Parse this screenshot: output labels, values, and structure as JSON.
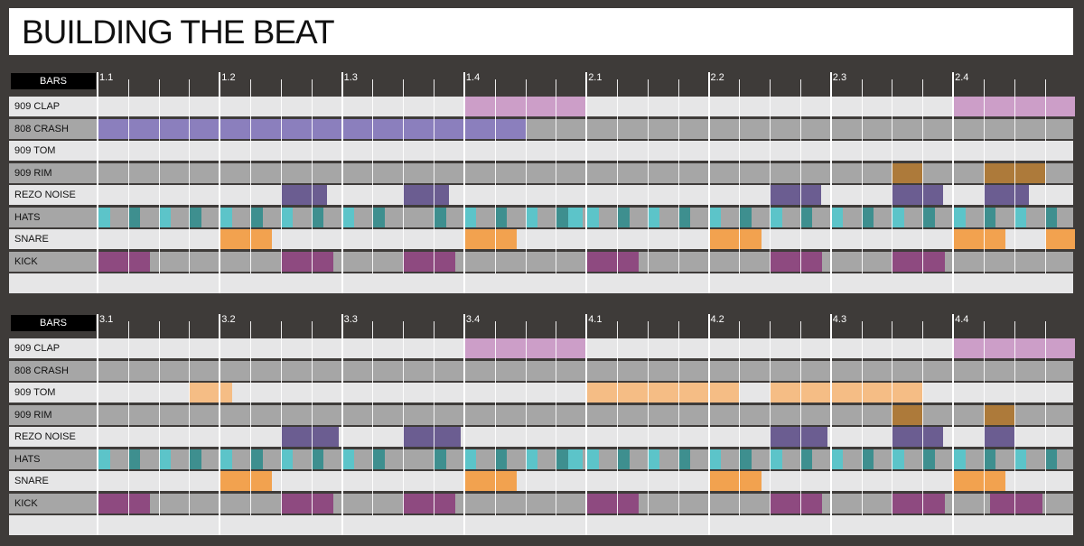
{
  "title": "BUILDING THE BEAT",
  "bars_label": "BARS",
  "colors": {
    "clap": "#cc9ec8",
    "crash": "#8b7fbd",
    "tom": "#f5bd85",
    "rim": "#ad7a3a",
    "rezo": "#6b5d91",
    "hats_light": "#5cc4c9",
    "hats_dark": "#3e8f8f",
    "snare": "#f2a24f",
    "kick": "#8e4a80"
  },
  "rows": [
    "909 CLAP",
    "808 CRASH",
    "909 TOM",
    "909 RIM",
    "REZO NOISE",
    "HATS",
    "SNARE",
    "KICK"
  ],
  "panels": [
    {
      "markers": [
        "1.1",
        "1.2",
        "1.3",
        "1.4",
        "2.1",
        "2.2",
        "2.3",
        "2.4"
      ],
      "notes": {
        "909 CLAP": [
          [
            3,
            4,
            "clap"
          ],
          [
            7,
            8,
            "clap"
          ]
        ],
        "808 CRASH": [
          [
            0,
            3.5,
            "crash"
          ]
        ],
        "909 TOM": [],
        "909 RIM": [
          [
            6.5,
            6.75,
            "rim"
          ],
          [
            7.25,
            7.75,
            "rim"
          ]
        ],
        "REZO NOISE": [
          [
            1.5,
            1.875,
            "rezo"
          ],
          [
            2.5,
            2.875,
            "rezo"
          ],
          [
            5.5,
            5.92,
            "rezo"
          ],
          [
            6.5,
            6.92,
            "rezo"
          ],
          [
            7.25,
            7.62,
            "rezo"
          ]
        ],
        "HATS": [
          [
            0,
            0.1,
            "hats_light"
          ],
          [
            0.25,
            0.35,
            "hats_dark"
          ],
          [
            0.5,
            0.6,
            "hats_light"
          ],
          [
            0.75,
            0.85,
            "hats_dark"
          ],
          [
            1,
            1.1,
            "hats_light"
          ],
          [
            1.25,
            1.35,
            "hats_dark"
          ],
          [
            1.5,
            1.6,
            "hats_light"
          ],
          [
            1.75,
            1.85,
            "hats_dark"
          ],
          [
            2,
            2.1,
            "hats_light"
          ],
          [
            2.25,
            2.35,
            "hats_dark"
          ],
          [
            2.75,
            2.85,
            "hats_dark"
          ],
          [
            3,
            3.1,
            "hats_light"
          ],
          [
            3.25,
            3.35,
            "hats_dark"
          ],
          [
            3.5,
            3.6,
            "hats_light"
          ],
          [
            3.75,
            3.85,
            "hats_dark"
          ],
          [
            3.85,
            3.97,
            "hats_light"
          ],
          [
            4,
            4.1,
            "hats_light"
          ],
          [
            4.25,
            4.35,
            "hats_dark"
          ],
          [
            4.5,
            4.6,
            "hats_light"
          ],
          [
            4.75,
            4.85,
            "hats_dark"
          ],
          [
            5,
            5.1,
            "hats_light"
          ],
          [
            5.25,
            5.35,
            "hats_dark"
          ],
          [
            5.5,
            5.6,
            "hats_light"
          ],
          [
            5.75,
            5.85,
            "hats_dark"
          ],
          [
            6,
            6.1,
            "hats_light"
          ],
          [
            6.25,
            6.35,
            "hats_dark"
          ],
          [
            6.5,
            6.6,
            "hats_light"
          ],
          [
            6.75,
            6.85,
            "hats_dark"
          ],
          [
            7,
            7.1,
            "hats_light"
          ],
          [
            7.25,
            7.35,
            "hats_dark"
          ],
          [
            7.5,
            7.6,
            "hats_light"
          ],
          [
            7.75,
            7.85,
            "hats_dark"
          ]
        ],
        "SNARE": [
          [
            1,
            1.43,
            "snare"
          ],
          [
            3,
            3.43,
            "snare"
          ],
          [
            5,
            5.43,
            "snare"
          ],
          [
            7,
            7.43,
            "snare"
          ],
          [
            7.75,
            8,
            "snare"
          ]
        ],
        "KICK": [
          [
            0,
            0.43,
            "kick"
          ],
          [
            1.5,
            1.93,
            "kick"
          ],
          [
            2.5,
            2.93,
            "kick"
          ],
          [
            4,
            4.43,
            "kick"
          ],
          [
            5.5,
            5.93,
            "kick"
          ],
          [
            6.5,
            6.93,
            "kick"
          ]
        ]
      }
    },
    {
      "markers": [
        "3.1",
        "3.2",
        "3.3",
        "3.4",
        "4.1",
        "4.2",
        "4.3",
        "4.4"
      ],
      "notes": {
        "909 CLAP": [
          [
            3,
            4,
            "clap"
          ],
          [
            7,
            8,
            "clap"
          ]
        ],
        "808 CRASH": [],
        "909 TOM": [
          [
            0.75,
            1.1,
            "tom"
          ],
          [
            4,
            5.25,
            "tom"
          ],
          [
            5.5,
            6.75,
            "tom"
          ]
        ],
        "909 RIM": [
          [
            6.5,
            6.75,
            "rim"
          ],
          [
            7.25,
            7.5,
            "rim"
          ]
        ],
        "REZO NOISE": [
          [
            1.5,
            1.97,
            "rezo"
          ],
          [
            2.5,
            2.97,
            "rezo"
          ],
          [
            5.5,
            5.97,
            "rezo"
          ],
          [
            6.5,
            6.92,
            "rezo"
          ],
          [
            7.25,
            7.5,
            "rezo"
          ]
        ],
        "HATS": [
          [
            0,
            0.1,
            "hats_light"
          ],
          [
            0.25,
            0.35,
            "hats_dark"
          ],
          [
            0.5,
            0.6,
            "hats_light"
          ],
          [
            0.75,
            0.85,
            "hats_dark"
          ],
          [
            1,
            1.1,
            "hats_light"
          ],
          [
            1.25,
            1.35,
            "hats_dark"
          ],
          [
            1.5,
            1.6,
            "hats_light"
          ],
          [
            1.75,
            1.85,
            "hats_dark"
          ],
          [
            2,
            2.1,
            "hats_light"
          ],
          [
            2.25,
            2.35,
            "hats_dark"
          ],
          [
            2.75,
            2.85,
            "hats_dark"
          ],
          [
            3,
            3.1,
            "hats_light"
          ],
          [
            3.25,
            3.35,
            "hats_dark"
          ],
          [
            3.5,
            3.6,
            "hats_light"
          ],
          [
            3.75,
            3.85,
            "hats_dark"
          ],
          [
            3.85,
            3.97,
            "hats_light"
          ],
          [
            4,
            4.1,
            "hats_light"
          ],
          [
            4.25,
            4.35,
            "hats_dark"
          ],
          [
            4.5,
            4.6,
            "hats_light"
          ],
          [
            4.75,
            4.85,
            "hats_dark"
          ],
          [
            5,
            5.1,
            "hats_light"
          ],
          [
            5.25,
            5.35,
            "hats_dark"
          ],
          [
            5.5,
            5.6,
            "hats_light"
          ],
          [
            5.75,
            5.85,
            "hats_dark"
          ],
          [
            6,
            6.1,
            "hats_light"
          ],
          [
            6.25,
            6.35,
            "hats_dark"
          ],
          [
            6.5,
            6.6,
            "hats_light"
          ],
          [
            6.75,
            6.85,
            "hats_dark"
          ],
          [
            7,
            7.1,
            "hats_light"
          ],
          [
            7.25,
            7.35,
            "hats_dark"
          ],
          [
            7.5,
            7.6,
            "hats_light"
          ],
          [
            7.75,
            7.85,
            "hats_dark"
          ]
        ],
        "SNARE": [
          [
            1,
            1.43,
            "snare"
          ],
          [
            3,
            3.43,
            "snare"
          ],
          [
            5,
            5.43,
            "snare"
          ],
          [
            7,
            7.43,
            "snare"
          ]
        ],
        "KICK": [
          [
            0,
            0.43,
            "kick"
          ],
          [
            1.5,
            1.93,
            "kick"
          ],
          [
            2.5,
            2.93,
            "kick"
          ],
          [
            4,
            4.43,
            "kick"
          ],
          [
            5.5,
            5.93,
            "kick"
          ],
          [
            6.5,
            6.93,
            "kick"
          ],
          [
            7.3,
            7.73,
            "kick"
          ]
        ]
      }
    }
  ]
}
